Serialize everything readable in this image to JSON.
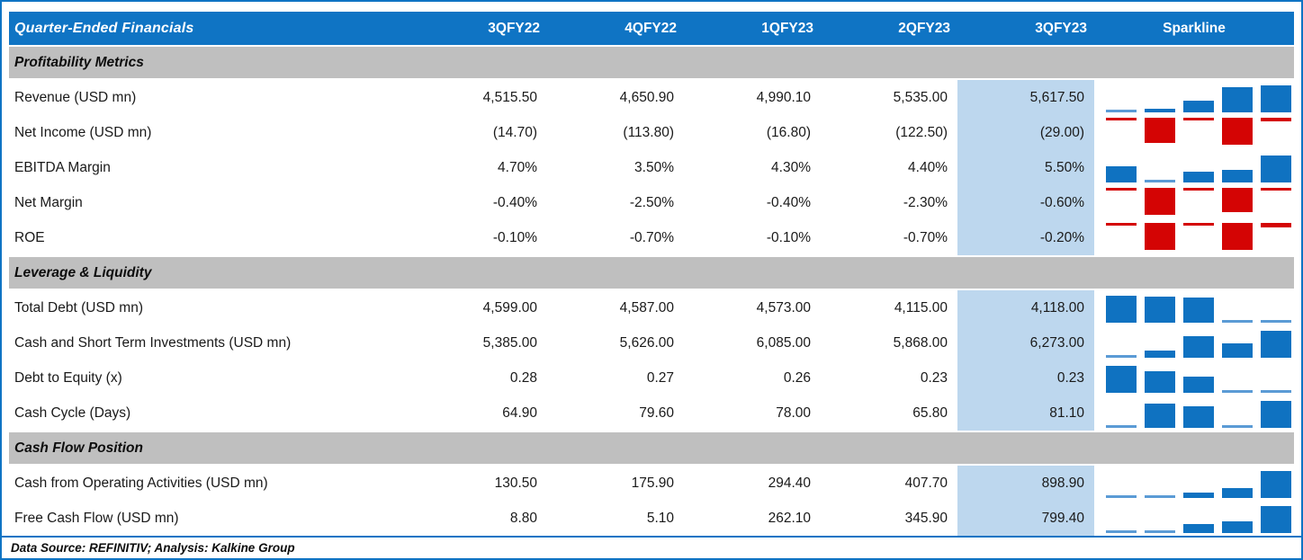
{
  "colors": {
    "header_blue": "#0F74C4",
    "section_band_gray": "#BFBFBF",
    "highlight_column_blue": "#BDD7EE",
    "sparkline_positive_blue": "#0F72C1",
    "sparkline_min_bar_blue": "#5B9BD5",
    "sparkline_negative_red": "#D40404",
    "outer_border_blue": "#0F74C4"
  },
  "chart_data": {
    "type": "table",
    "title": "Quarter-Ended Financials",
    "columns": [
      "3QFY22",
      "4QFY22",
      "1QFY23",
      "2QFY23",
      "3QFY23"
    ],
    "sparkline_header": "Sparkline",
    "highlight_column_index": 4,
    "sparkline_style": "column sparkline per row, scaled row-min to row-max; positive rows blue bars rising from bottom, negative rows red bars hanging from top",
    "sections": [
      {
        "label": "Profitability Metrics",
        "rows": [
          {
            "label": "Revenue (USD mn)",
            "cells": [
              "4,515.50",
              "4,650.90",
              "4,990.10",
              "5,535.00",
              "5,617.50"
            ],
            "values": [
              4515.5,
              4650.9,
              4990.1,
              5535.0,
              5617.5
            ]
          },
          {
            "label": "Net Income (USD mn)",
            "cells": [
              "(14.70)",
              "(113.80)",
              "(16.80)",
              "(122.50)",
              "(29.00)"
            ],
            "values": [
              -14.7,
              -113.8,
              -16.8,
              -122.5,
              -29.0
            ]
          },
          {
            "label": "EBITDA Margin",
            "cells": [
              "4.70%",
              "3.50%",
              "4.30%",
              "4.40%",
              "5.50%"
            ],
            "values": [
              4.7,
              3.5,
              4.3,
              4.4,
              5.5
            ]
          },
          {
            "label": "Net Margin",
            "cells": [
              "-0.40%",
              "-2.50%",
              "-0.40%",
              "-2.30%",
              "-0.60%"
            ],
            "values": [
              -0.4,
              -2.5,
              -0.4,
              -2.3,
              -0.6
            ]
          },
          {
            "label": "ROE",
            "cells": [
              "-0.10%",
              "-0.70%",
              "-0.10%",
              "-0.70%",
              "-0.20%"
            ],
            "values": [
              -0.1,
              -0.7,
              -0.1,
              -0.7,
              -0.2
            ]
          }
        ]
      },
      {
        "label": "Leverage & Liquidity",
        "rows": [
          {
            "label": "Total Debt (USD mn)",
            "cells": [
              "4,599.00",
              "4,587.00",
              "4,573.00",
              "4,115.00",
              "4,118.00"
            ],
            "values": [
              4599.0,
              4587.0,
              4573.0,
              4115.0,
              4118.0
            ]
          },
          {
            "label": "Cash and Short Term Investments (USD mn)",
            "cells": [
              "5,385.00",
              "5,626.00",
              "6,085.00",
              "5,868.00",
              "6,273.00"
            ],
            "values": [
              5385.0,
              5626.0,
              6085.0,
              5868.0,
              6273.0
            ]
          },
          {
            "label": "Debt to Equity (x)",
            "cells": [
              "0.28",
              "0.27",
              "0.26",
              "0.23",
              "0.23"
            ],
            "values": [
              0.28,
              0.27,
              0.26,
              0.23,
              0.23
            ]
          },
          {
            "label": "Cash Cycle (Days)",
            "cells": [
              "64.90",
              "79.60",
              "78.00",
              "65.80",
              "81.10"
            ],
            "values": [
              64.9,
              79.6,
              78.0,
              65.8,
              81.1
            ]
          }
        ]
      },
      {
        "label": "Cash Flow Position",
        "rows": [
          {
            "label": "Cash from Operating Activities (USD mn)",
            "cells": [
              "130.50",
              "175.90",
              "294.40",
              "407.70",
              "898.90"
            ],
            "values": [
              130.5,
              175.9,
              294.4,
              407.7,
              898.9
            ]
          },
          {
            "label": "Free Cash Flow (USD mn)",
            "cells": [
              "8.80",
              "5.10",
              "262.10",
              "345.90",
              "799.40"
            ],
            "values": [
              8.8,
              5.1,
              262.1,
              345.9,
              799.4
            ]
          }
        ]
      }
    ],
    "footer": "Data Source: REFINITIV; Analysis: Kalkine Group"
  }
}
